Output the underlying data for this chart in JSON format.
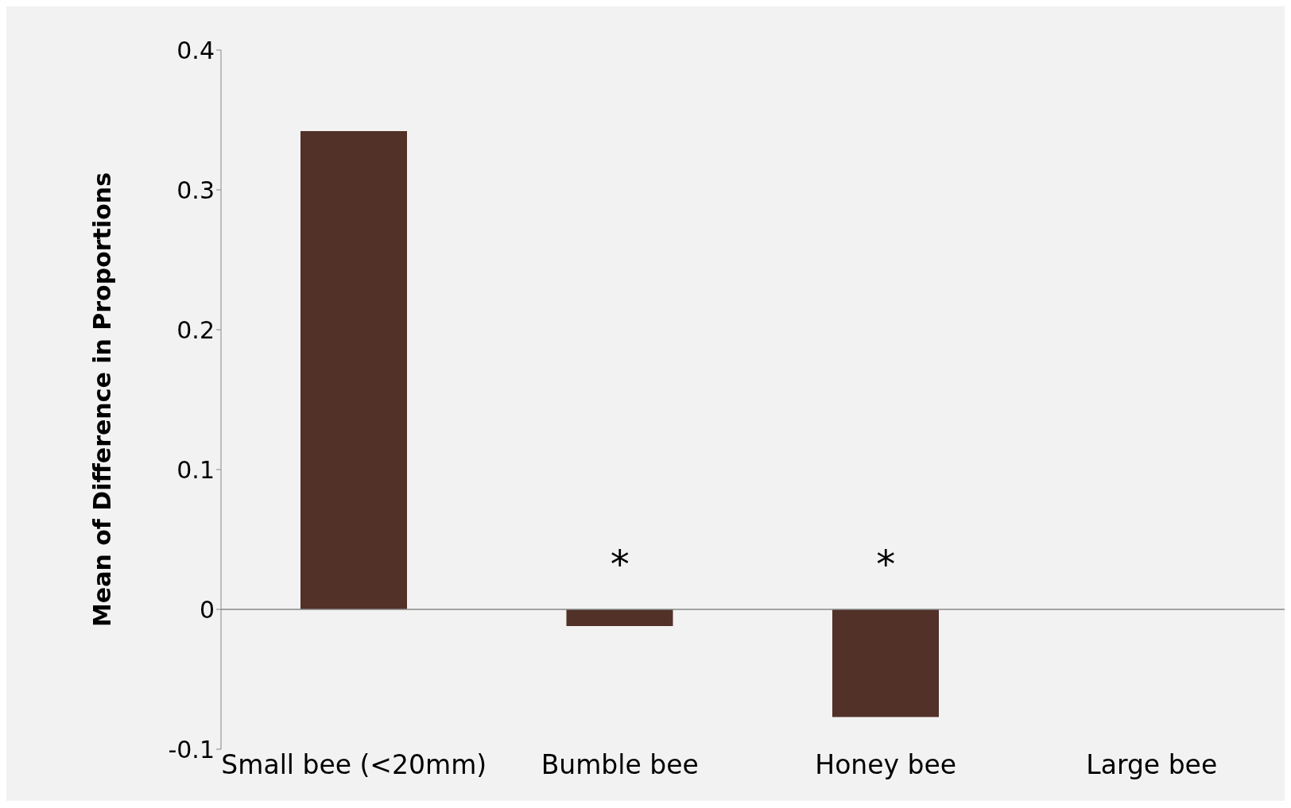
{
  "chart_data": {
    "type": "bar",
    "ylabel": "Mean of Difference in Proportions",
    "categories": [
      "Small bee (<20mm)",
      "Bumble bee",
      "Honey bee",
      "Large bee"
    ],
    "values": [
      0.342,
      -0.012,
      -0.077,
      0
    ],
    "color": "#523128",
    "ylim": [
      -0.1,
      0.4
    ],
    "yticks": [
      -0.1,
      0,
      0.1,
      0.2,
      0.3,
      0.4
    ],
    "annotations": [
      "*",
      "*"
    ],
    "legend": false
  }
}
